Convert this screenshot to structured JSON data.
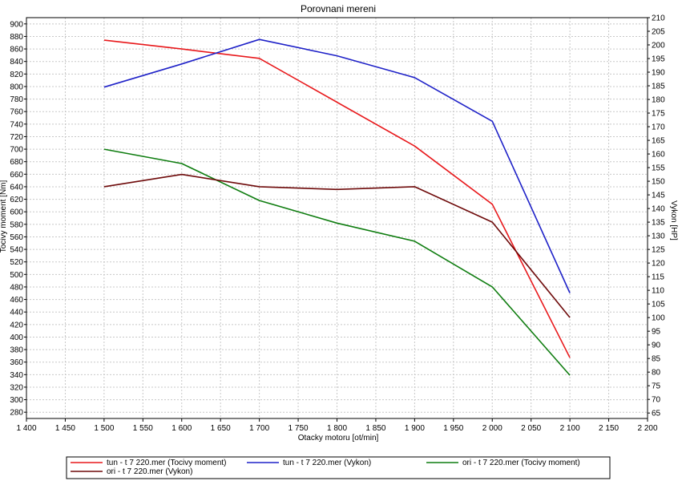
{
  "chart_data": {
    "type": "line",
    "title": "Porovnani mereni",
    "xlabel": "Otacky motoru [ot/min]",
    "ylabel": "Tocivy moment [Nm]",
    "y2label": "Vykon [HP]",
    "xlim": [
      1400,
      2200
    ],
    "ylim": [
      270,
      910
    ],
    "y2lim": [
      63,
      210
    ],
    "x_ticks": [
      1400,
      1450,
      1500,
      1550,
      1600,
      1650,
      1700,
      1750,
      1800,
      1850,
      1900,
      1950,
      2000,
      2050,
      2100,
      2150,
      2200
    ],
    "x_tick_labels": [
      "1 400",
      "1 450",
      "1 500",
      "1 550",
      "1 600",
      "1 650",
      "1 700",
      "1 750",
      "1 800",
      "1 850",
      "1 900",
      "1 950",
      "2 000",
      "2 050",
      "2 100",
      "2 150",
      "2 200"
    ],
    "y_ticks": [
      280,
      300,
      320,
      340,
      360,
      380,
      400,
      420,
      440,
      460,
      480,
      500,
      520,
      540,
      560,
      580,
      600,
      620,
      640,
      660,
      680,
      700,
      720,
      740,
      760,
      780,
      800,
      820,
      840,
      860,
      880,
      900
    ],
    "y2_ticks": [
      65,
      70,
      75,
      80,
      85,
      90,
      95,
      100,
      105,
      110,
      115,
      120,
      125,
      130,
      135,
      140,
      145,
      150,
      155,
      160,
      165,
      170,
      175,
      180,
      185,
      190,
      195,
      200,
      205,
      210
    ],
    "grid": true,
    "legend_position": "bottom",
    "series": [
      {
        "name": "tun - t 7 220.mer  (Tocivy moment)",
        "axis": "left",
        "color": "#e8191c",
        "x": [
          1500,
          1600,
          1700,
          1800,
          1900,
          2000,
          2100
        ],
        "y": [
          874,
          860,
          845,
          775,
          705,
          612,
          367
        ]
      },
      {
        "name": "tun - t 7 220.mer  (Vykon)",
        "axis": "right",
        "color": "#1f22c8",
        "x": [
          1500,
          1600,
          1700,
          1800,
          1900,
          2000,
          2100
        ],
        "y": [
          184.5,
          193,
          202,
          196,
          188,
          172,
          109
        ]
      },
      {
        "name": "ori - t 7 220.mer  (Tocivy moment)",
        "axis": "left",
        "color": "#0f7d10",
        "x": [
          1500,
          1600,
          1700,
          1800,
          1900,
          2000,
          2100
        ],
        "y": [
          700,
          677,
          618,
          582,
          553,
          480,
          339
        ]
      },
      {
        "name": "ori - t 7 220.mer  (Vykon)",
        "axis": "right",
        "color": "#6e0a0a",
        "x": [
          1500,
          1600,
          1700,
          1800,
          1900,
          2000,
          2100
        ],
        "y": [
          148,
          152.5,
          148,
          147,
          148,
          135,
          100
        ]
      }
    ]
  }
}
